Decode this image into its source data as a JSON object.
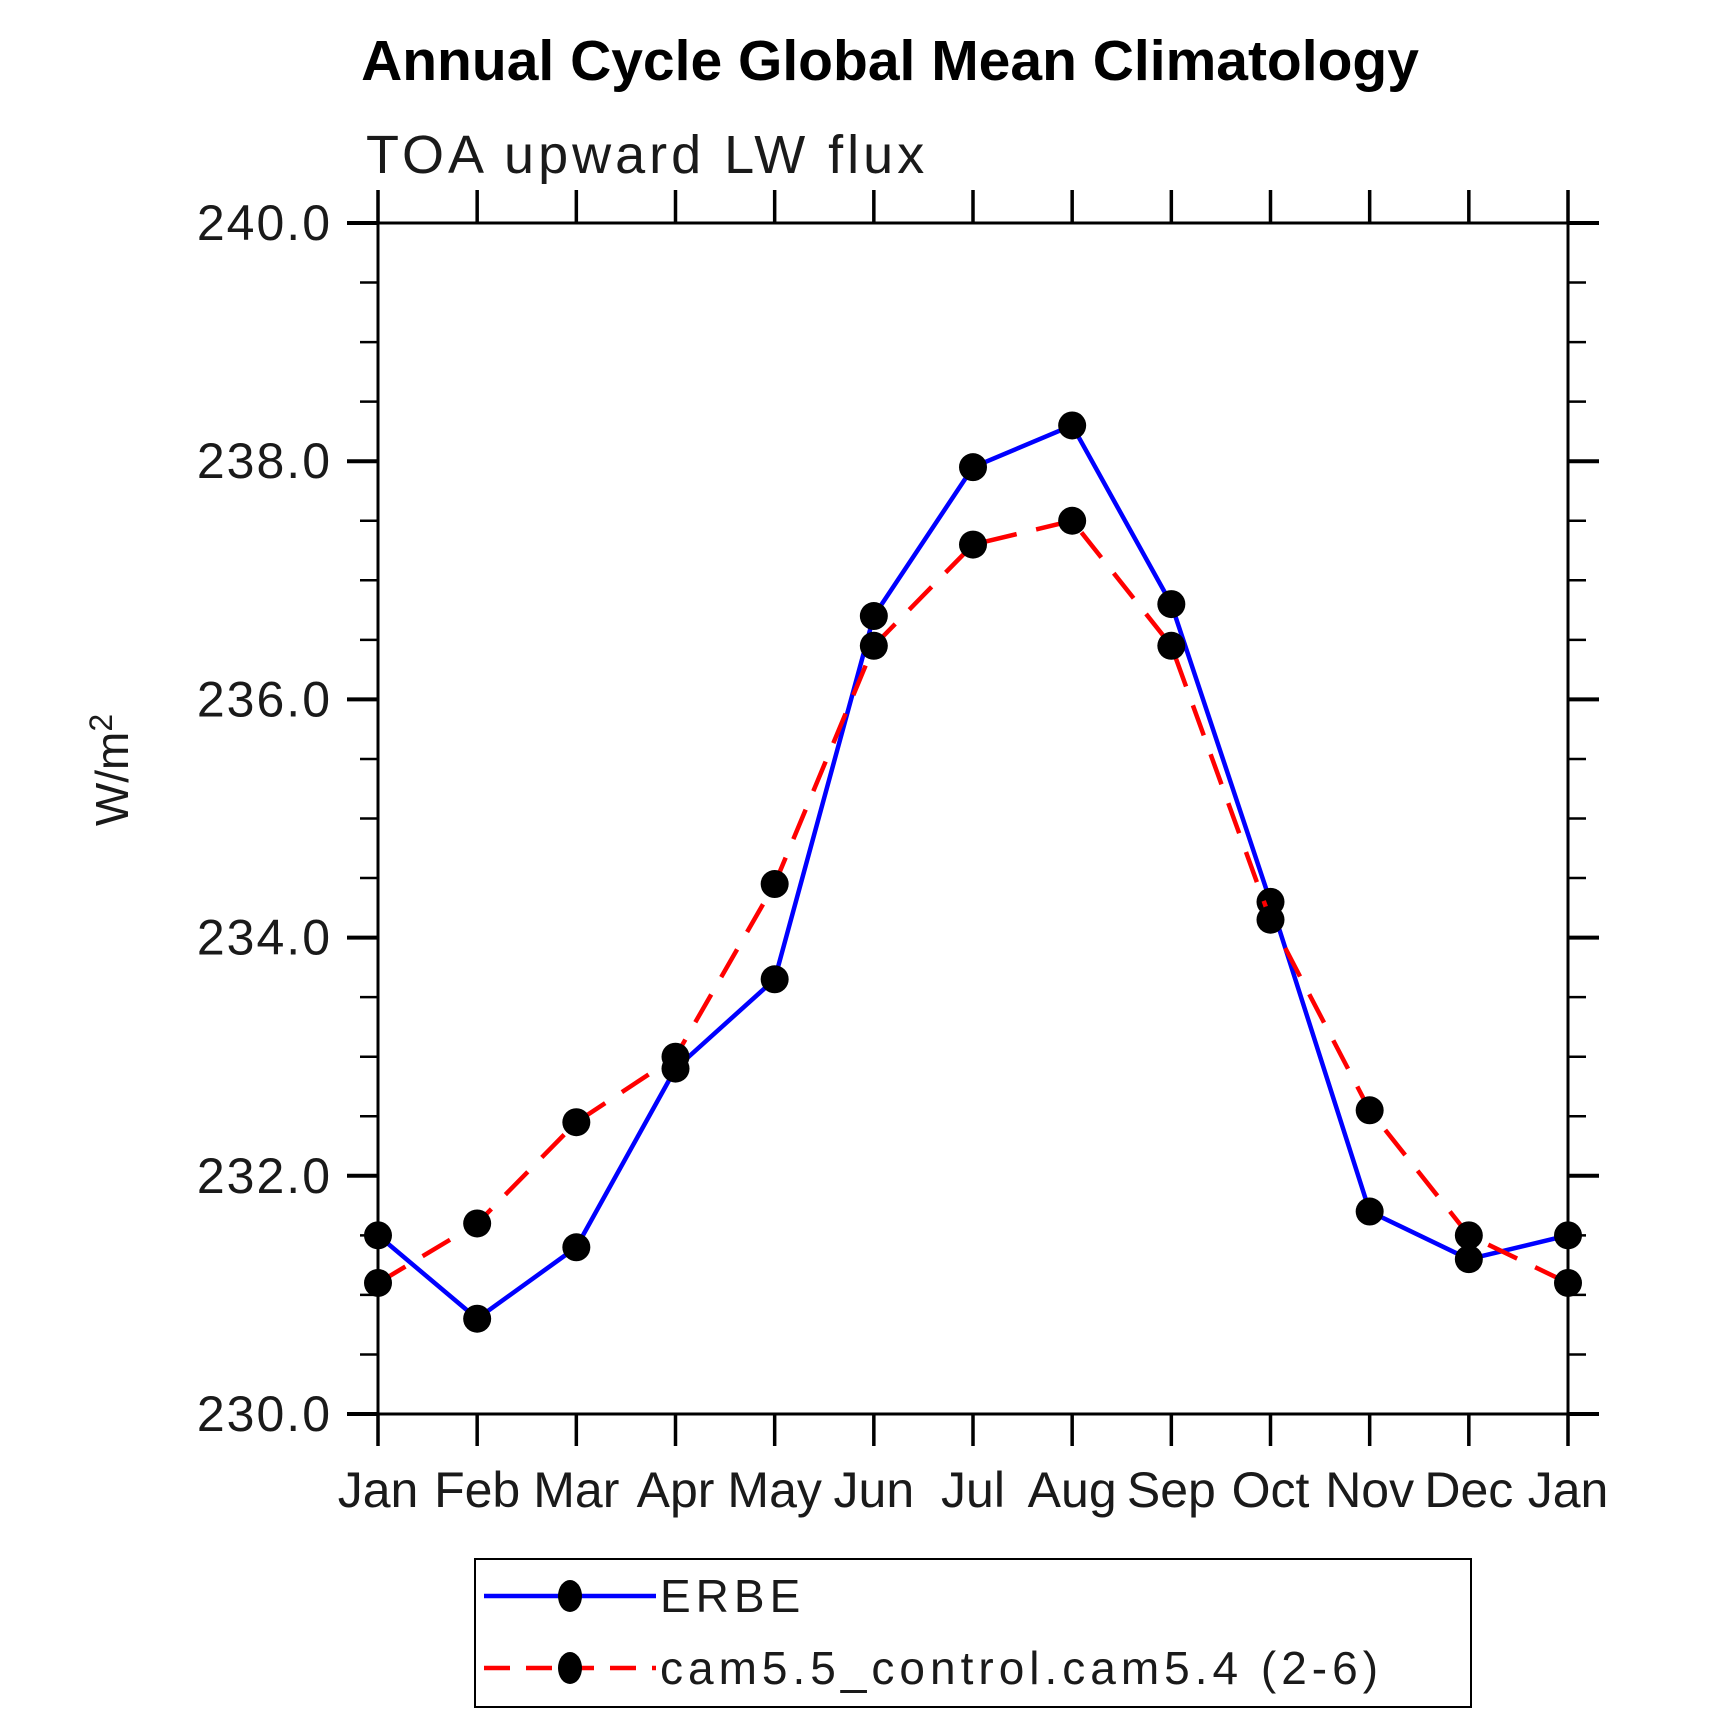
{
  "chart_data": {
    "type": "line",
    "title": "Annual Cycle Global Mean Climatology",
    "subtitle": "TOA upward LW flux",
    "ylabel_base": "W/m",
    "ylabel_exponent": "2",
    "x_categories": [
      "Jan",
      "Feb",
      "Mar",
      "Apr",
      "May",
      "Jun",
      "Jul",
      "Aug",
      "Sep",
      "Oct",
      "Nov",
      "Dec",
      "Jan"
    ],
    "ylim": [
      230.0,
      240.0
    ],
    "y_major_step": 2.0,
    "y_minor_step": 0.5,
    "y_tick_labels": [
      "230.0",
      "232.0",
      "234.0",
      "236.0",
      "238.0",
      "240.0"
    ],
    "grid": false,
    "legend_position": "bottom",
    "series": [
      {
        "name": "ERBE",
        "line_style": "solid",
        "color": "#0000ff",
        "marker": "circle",
        "marker_color": "#000000",
        "values": [
          231.5,
          230.8,
          231.4,
          232.9,
          233.65,
          236.7,
          237.95,
          238.3,
          236.8,
          234.3,
          231.7,
          231.3,
          231.5
        ]
      },
      {
        "name": "cam5.5_control.cam5.4 (2-6)",
        "line_style": "dashed",
        "color": "#ff0000",
        "marker": "circle",
        "marker_color": "#000000",
        "values": [
          231.1,
          231.6,
          232.45,
          233.0,
          234.45,
          236.45,
          237.3,
          237.5,
          236.45,
          234.15,
          232.55,
          231.5,
          231.1
        ]
      }
    ],
    "frame_color": "#000000",
    "text_color": "#1a1a1a"
  }
}
